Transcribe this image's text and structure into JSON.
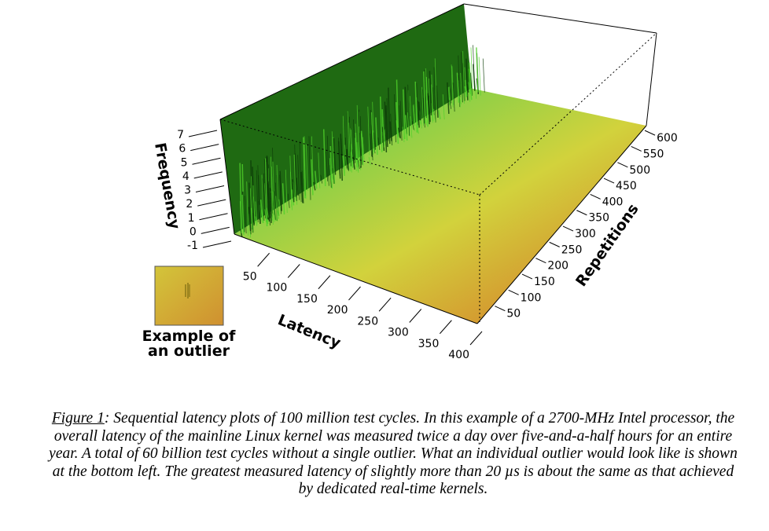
{
  "chart_data": {
    "type": "surface3d",
    "title": "",
    "xlabel": "Latency",
    "ylabel": "Repetitions",
    "zlabel": "Frequency",
    "x_ticks": [
      "50",
      "100",
      "150",
      "200",
      "250",
      "300",
      "350",
      "400"
    ],
    "y_ticks": [
      "50",
      "100",
      "150",
      "200",
      "250",
      "300",
      "350",
      "400",
      "450",
      "500",
      "550",
      "600"
    ],
    "z_ticks": [
      "-1",
      "0",
      "1",
      "2",
      "3",
      "4",
      "5",
      "6",
      "7"
    ],
    "xlim": [
      0,
      400
    ],
    "ylim": [
      0,
      620
    ],
    "zlim": [
      -1,
      7
    ],
    "note": "Frequency peaks concentrated at low latency (<~60), flat elsewhere",
    "colors": {
      "low": "#22cc22",
      "mid": "#d4d23a",
      "high": "#d42a1e",
      "wall": "#1f6a12"
    }
  },
  "inset": {
    "label_line1": "Example of",
    "label_line2": "an outlier"
  },
  "caption": {
    "figure_label": "Figure 1",
    "text": ": Sequential latency plots of 100 million test cycles. In this example of a 2700-MHz Intel processor, the overall latency of the mainline Linux kernel was measured twice a day over five-and-a-half hours for an entire year. A total of 60 billion test cycles without a single outlier. What an individual outlier would look like is shown at the bottom left. The greatest measured latency of slightly more than 20 µs is about the same as that achieved by dedicated real-time kernels."
  }
}
